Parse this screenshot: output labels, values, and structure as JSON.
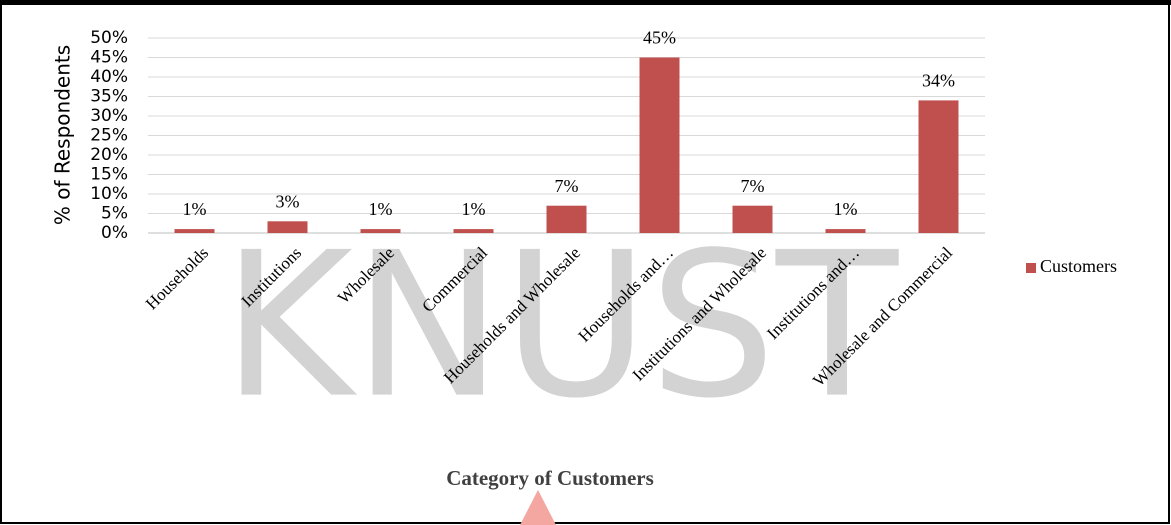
{
  "chart_data": {
    "type": "bar",
    "y_label": "% of Respondents",
    "x_label": "Category of Customers",
    "watermark": "KNUST",
    "categories": [
      "Households",
      "Institutions",
      "Wholesale",
      "Commercial",
      "Households and Wholesale",
      "Households and…",
      "Institutions and Wholesale",
      "Institutions and…",
      "Wholesale and Commercial"
    ],
    "series": [
      {
        "name": "Customers",
        "color": "#c0504d",
        "values": [
          1,
          3,
          1,
          1,
          7,
          45,
          7,
          1,
          34
        ],
        "value_labels": [
          "1%",
          "3%",
          "1%",
          "1%",
          "7%",
          "45%",
          "7%",
          "1%",
          "34%"
        ]
      }
    ],
    "ylim": [
      0,
      50
    ],
    "yticks": [
      {
        "value": 0,
        "label": "0%"
      },
      {
        "value": 5,
        "label": "5%"
      },
      {
        "value": 10,
        "label": "10%"
      },
      {
        "value": 15,
        "label": "15%"
      },
      {
        "value": 20,
        "label": "20%"
      },
      {
        "value": 25,
        "label": "25%"
      },
      {
        "value": 30,
        "label": "30%"
      },
      {
        "value": 35,
        "label": "35%"
      },
      {
        "value": 40,
        "label": "40%"
      },
      {
        "value": 45,
        "label": "45%"
      },
      {
        "value": 50,
        "label": "50%"
      }
    ],
    "grid": true,
    "legend": "right"
  }
}
